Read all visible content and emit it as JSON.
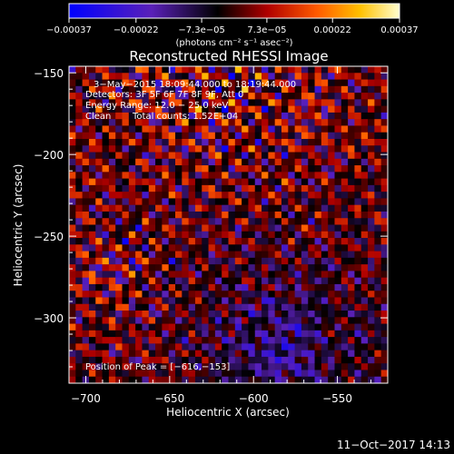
{
  "chart_data": {
    "type": "heatmap",
    "title": "Reconstructed RHESSI Image",
    "xlabel": "Heliocentric X (arcsec)",
    "ylabel": "Heliocentric Y (arcsec)",
    "xlim": [
      -710,
      -520
    ],
    "ylim": [
      -340,
      -146
    ],
    "x_ticks": [
      -700,
      -650,
      -600,
      -550
    ],
    "x_tick_labels": [
      "−700",
      "−650",
      "−600",
      "−550"
    ],
    "y_ticks": [
      -150,
      -200,
      -250,
      -300
    ],
    "y_tick_labels": [
      "−150",
      "−200",
      "−250",
      "−300"
    ],
    "colorbar": {
      "range": [
        -0.00037,
        0.00037
      ],
      "ticks": [
        -0.00037,
        -0.00022,
        -7.3e-05,
        7.3e-05,
        0.00022,
        0.00037
      ],
      "tick_labels": [
        "−0.00037",
        "−0.00022",
        "−7.3e−05",
        "7.3e−05",
        "0.00022",
        "0.00037"
      ],
      "unit_label": "(photons cm⁻² s⁻¹ asec⁻²)",
      "colors": [
        "#0000ff",
        "#5a20b8",
        "#000000",
        "#b00000",
        "#ff5a00",
        "#ffc000",
        "#ffffd0"
      ]
    },
    "annotations": {
      "time": "3−May−2015 18:09:44.000 to 18:19:44.000",
      "detectors": "Detectors: 3F 5F 6F 7F 8F 9F, Att 0",
      "energy": "Energy Range: 12.0 − 25.0 keV",
      "method": "Clean",
      "counts": "Total counts: 1.52E+04",
      "peak": "Position of Peak = [−616,−153]"
    },
    "peak_position": [
      -616,
      -153
    ],
    "pixel_size_arcsec": 4,
    "grid_size": [
      48,
      48
    ]
  },
  "footer": {
    "timestamp": "11−Oct−2017 14:13"
  }
}
